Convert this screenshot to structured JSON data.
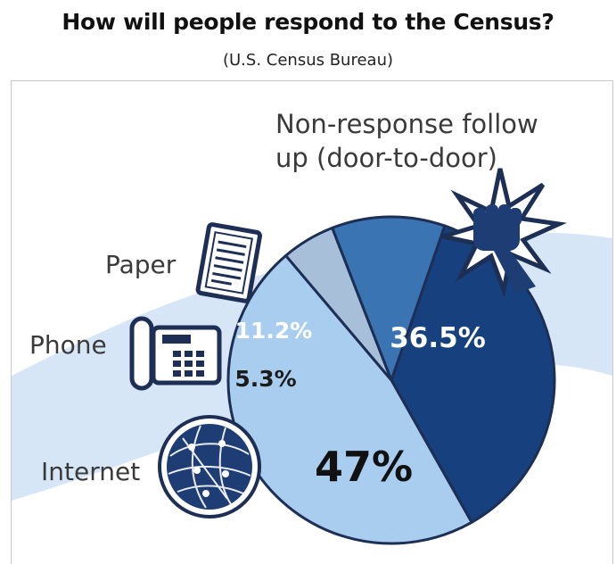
{
  "header": {
    "title": "How will people respond to the Census?",
    "subtitle": "(U.S. Census Bureau)"
  },
  "chart_data": {
    "type": "pie",
    "title": "How will people respond to the Census?",
    "subtitle": "(U.S. Census Bureau)",
    "slices": [
      {
        "label": "Non-response follow up (door-to-door)",
        "value": 36.5,
        "value_label": "36.5%",
        "color": "#17407f"
      },
      {
        "label": "Internet",
        "value": 47,
        "value_label": "47%",
        "color": "#a9cdef"
      },
      {
        "label": "Phone",
        "value": 5.3,
        "value_label": "5.3%",
        "color": "#a7bfd8"
      },
      {
        "label": "Paper",
        "value": 11.2,
        "value_label": "11.2%",
        "color": "#3b74b2"
      }
    ],
    "category_labels": {
      "door": [
        "Non-response follow",
        "up (door-to-door)"
      ],
      "paper": "Paper",
      "phone": "Phone",
      "internet": "Internet"
    },
    "icons": [
      "paper-document-icon",
      "telephone-icon",
      "globe-network-icon",
      "door-knock-fist-icon"
    ],
    "colors": {
      "outline": "#1d2f55",
      "swoosh": "#cfe2f6",
      "label_dark": "#3a3a3a"
    }
  }
}
